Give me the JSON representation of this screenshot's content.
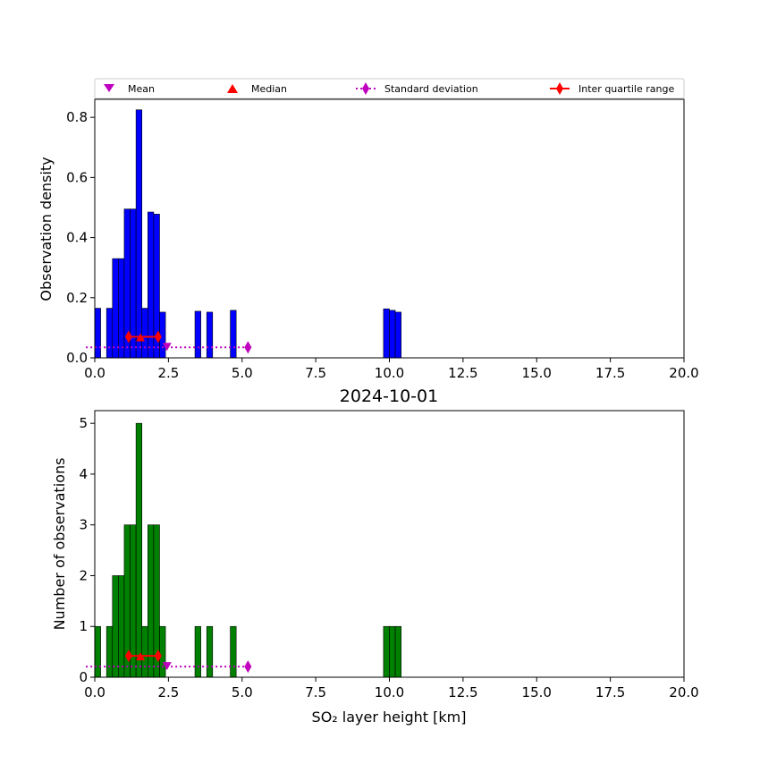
{
  "legend": {
    "entries": [
      {
        "label": "Mean",
        "color": "#bf00bf",
        "marker": "triangle-down"
      },
      {
        "label": "Median",
        "color": "#ff0000",
        "marker": "triangle-up"
      },
      {
        "label": "Standard deviation",
        "color": "#bf00bf",
        "marker": "diamond-dotted-line"
      },
      {
        "label": "Inter quartile range",
        "color": "#ff0000",
        "marker": "diamond-solid-line"
      }
    ]
  },
  "chart_data": [
    {
      "type": "bar",
      "title": "",
      "xlabel": "",
      "ylabel": "Observation density",
      "xlim": [
        0,
        20
      ],
      "ylim": [
        0,
        0.86
      ],
      "xticks": [
        "0.0",
        "2.5",
        "5.0",
        "7.5",
        "10.0",
        "12.5",
        "15.0",
        "17.5",
        "20.0"
      ],
      "xtick_values": [
        0,
        2.5,
        5,
        7.5,
        10,
        12.5,
        15,
        17.5,
        20
      ],
      "yticks": [
        "0.0",
        "0.2",
        "0.4",
        "0.6",
        "0.8"
      ],
      "ytick_values": [
        0,
        0.2,
        0.4,
        0.6,
        0.8
      ],
      "bar_color": "#0000ff",
      "bars": [
        {
          "x0": 0.0,
          "x1": 0.2,
          "value": 0.165
        },
        {
          "x0": 0.4,
          "x1": 0.6,
          "value": 0.165
        },
        {
          "x0": 0.6,
          "x1": 0.8,
          "value": 0.33
        },
        {
          "x0": 0.8,
          "x1": 1.0,
          "value": 0.33
        },
        {
          "x0": 1.0,
          "x1": 1.2,
          "value": 0.495
        },
        {
          "x0": 1.2,
          "x1": 1.4,
          "value": 0.495
        },
        {
          "x0": 1.4,
          "x1": 1.6,
          "value": 0.825
        },
        {
          "x0": 1.6,
          "x1": 1.8,
          "value": 0.165
        },
        {
          "x0": 1.8,
          "x1": 2.0,
          "value": 0.485
        },
        {
          "x0": 2.0,
          "x1": 2.2,
          "value": 0.478
        },
        {
          "x0": 2.2,
          "x1": 2.4,
          "value": 0.152
        },
        {
          "x0": 3.4,
          "x1": 3.6,
          "value": 0.155
        },
        {
          "x0": 3.8,
          "x1": 4.0,
          "value": 0.152
        },
        {
          "x0": 4.6,
          "x1": 4.8,
          "value": 0.158
        },
        {
          "x0": 9.8,
          "x1": 10.0,
          "value": 0.163
        },
        {
          "x0": 10.0,
          "x1": 10.2,
          "value": 0.158
        },
        {
          "x0": 10.2,
          "x1": 10.4,
          "value": 0.152
        }
      ],
      "stats": {
        "y": 0.07,
        "y_std": 0.035,
        "mean": 2.45,
        "median": 1.55,
        "q1": 1.15,
        "q3": 2.15,
        "std_end": 5.2
      }
    },
    {
      "type": "bar",
      "title": "2024-10-01",
      "xlabel": "SO₂ layer height [km]",
      "ylabel": "Number of observations",
      "xlim": [
        0,
        20
      ],
      "ylim": [
        0,
        5.25
      ],
      "xticks": [
        "0.0",
        "2.5",
        "5.0",
        "7.5",
        "10.0",
        "12.5",
        "15.0",
        "17.5",
        "20.0"
      ],
      "xtick_values": [
        0,
        2.5,
        5,
        7.5,
        10,
        12.5,
        15,
        17.5,
        20
      ],
      "yticks": [
        "0",
        "1",
        "2",
        "3",
        "4",
        "5"
      ],
      "ytick_values": [
        0,
        1,
        2,
        3,
        4,
        5
      ],
      "bar_color": "#008000",
      "bars": [
        {
          "x0": 0.0,
          "x1": 0.2,
          "value": 1
        },
        {
          "x0": 0.4,
          "x1": 0.6,
          "value": 1
        },
        {
          "x0": 0.6,
          "x1": 0.8,
          "value": 2
        },
        {
          "x0": 0.8,
          "x1": 1.0,
          "value": 2
        },
        {
          "x0": 1.0,
          "x1": 1.2,
          "value": 3
        },
        {
          "x0": 1.2,
          "x1": 1.4,
          "value": 3
        },
        {
          "x0": 1.4,
          "x1": 1.6,
          "value": 5
        },
        {
          "x0": 1.6,
          "x1": 1.8,
          "value": 1
        },
        {
          "x0": 1.8,
          "x1": 2.0,
          "value": 3
        },
        {
          "x0": 2.0,
          "x1": 2.2,
          "value": 3
        },
        {
          "x0": 2.2,
          "x1": 2.4,
          "value": 1
        },
        {
          "x0": 3.4,
          "x1": 3.6,
          "value": 1
        },
        {
          "x0": 3.8,
          "x1": 4.0,
          "value": 1
        },
        {
          "x0": 4.6,
          "x1": 4.8,
          "value": 1
        },
        {
          "x0": 9.8,
          "x1": 10.0,
          "value": 1
        },
        {
          "x0": 10.0,
          "x1": 10.2,
          "value": 1
        },
        {
          "x0": 10.2,
          "x1": 10.4,
          "value": 1
        }
      ],
      "stats": {
        "y": 0.42,
        "y_std": 0.21,
        "mean": 2.45,
        "median": 1.55,
        "q1": 1.15,
        "q3": 2.15,
        "std_end": 5.2
      }
    }
  ]
}
